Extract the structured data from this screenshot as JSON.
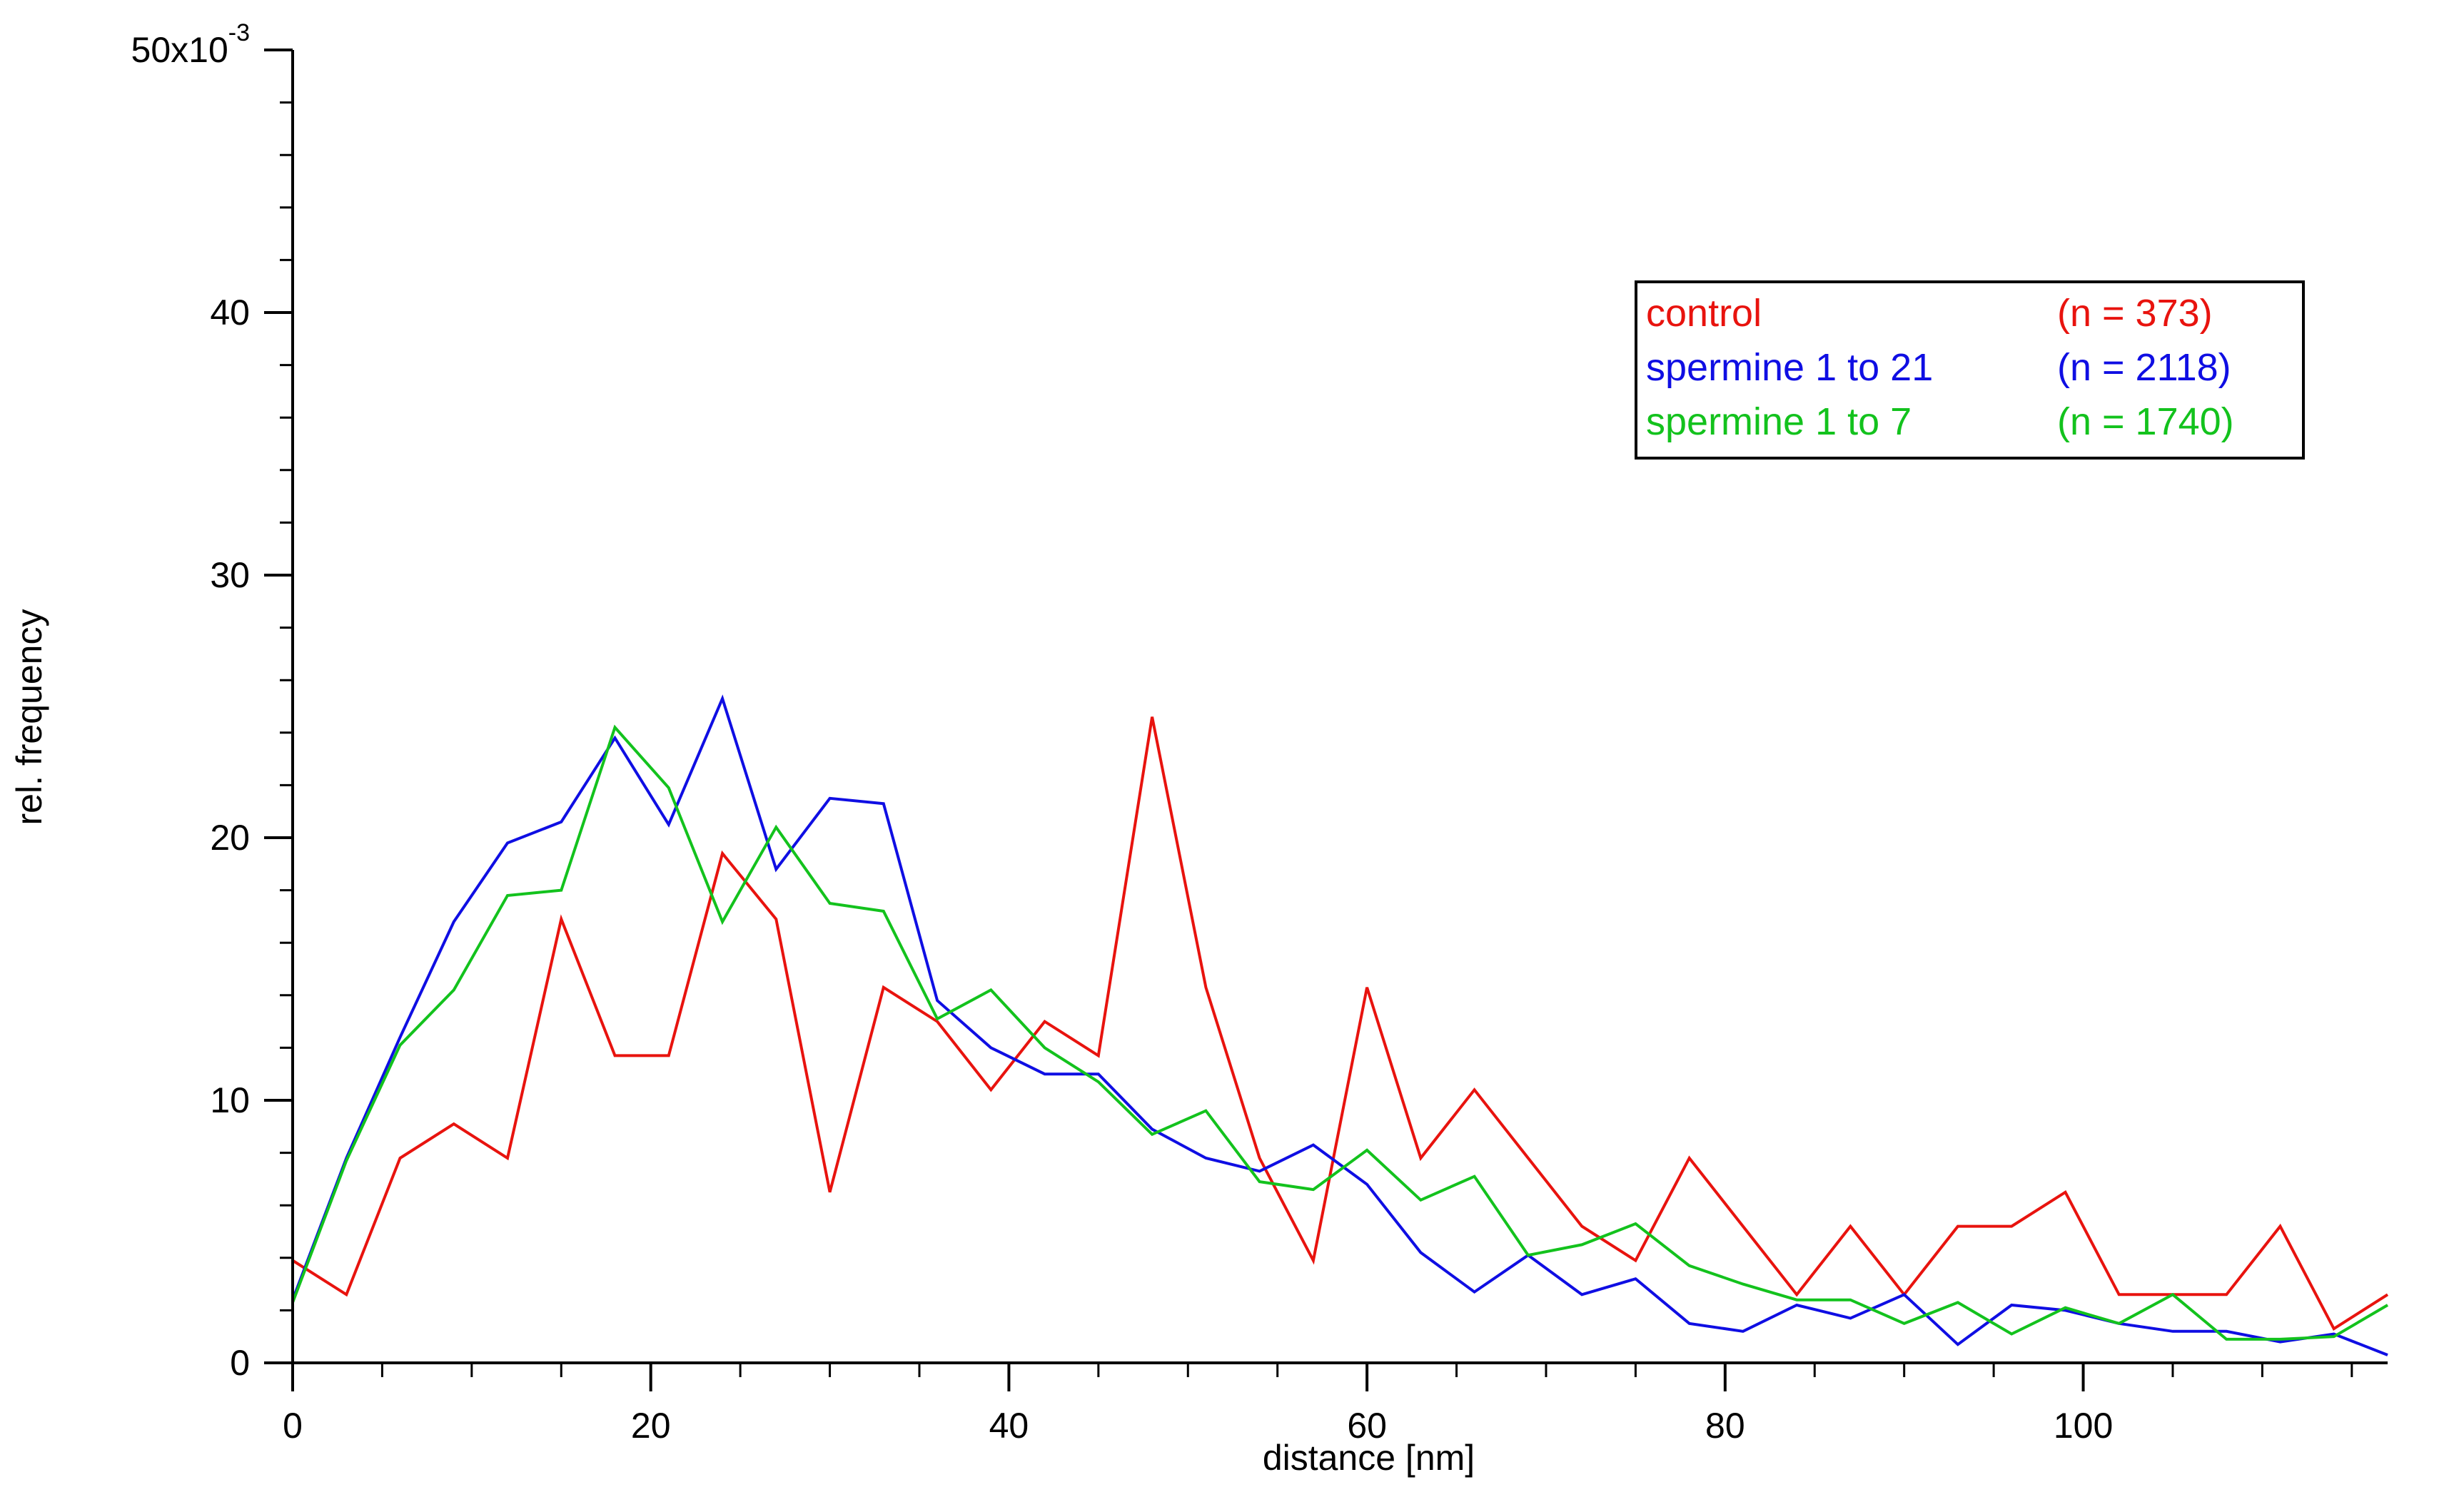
{
  "chart_data": {
    "type": "line",
    "xlabel": "distance [nm]",
    "ylabel": "rel. frequency",
    "xlim": [
      0,
      117
    ],
    "ylim": [
      0,
      0.05
    ],
    "x_ticks": [
      0,
      20,
      40,
      60,
      80,
      100
    ],
    "x_tick_labels": [
      "0",
      "20",
      "40",
      "60",
      "80",
      "100"
    ],
    "y_ticks": [
      0,
      0.01,
      0.02,
      0.03,
      0.04,
      0.05
    ],
    "y_tick_labels": [
      "0",
      "10",
      "20",
      "30",
      "40",
      "50x10"
    ],
    "y_top_exponent": "-3",
    "grid": false,
    "legend_position": "top-right",
    "x": [
      0,
      3,
      6,
      9,
      12,
      15,
      18,
      21,
      24,
      27,
      30,
      33,
      36,
      39,
      42,
      45,
      48,
      51,
      54,
      57,
      60,
      63,
      66,
      69,
      72,
      75,
      78,
      81,
      84,
      87,
      90,
      93,
      96,
      99,
      102,
      105,
      108,
      111,
      114,
      117
    ],
    "series": [
      {
        "name": "control",
        "n_label": "(n = 373)",
        "color": "#e8130e",
        "values": [
          0.0039,
          0.0026,
          0.0078,
          0.0091,
          0.0078,
          0.0169,
          0.0117,
          0.0117,
          0.0194,
          0.0169,
          0.0065,
          0.0143,
          0.013,
          0.0104,
          0.013,
          0.0117,
          0.0246,
          0.0143,
          0.0078,
          0.0039,
          0.0143,
          0.0078,
          0.0104,
          0.0078,
          0.0052,
          0.0039,
          0.0078,
          0.0052,
          0.0026,
          0.0052,
          0.0026,
          0.0052,
          0.0052,
          0.0065,
          0.0026,
          0.0026,
          0.0026,
          0.0052,
          0.0013,
          0.0026
        ]
      },
      {
        "name": "spermine 1 to 21",
        "n_label": "(n = 2118)",
        "color": "#0f0ee3",
        "values": [
          0.0024,
          0.0078,
          0.0124,
          0.0168,
          0.0198,
          0.0206,
          0.0238,
          0.0205,
          0.0253,
          0.0188,
          0.0215,
          0.0213,
          0.0138,
          0.012,
          0.011,
          0.011,
          0.0089,
          0.0078,
          0.0073,
          0.0083,
          0.0068,
          0.0042,
          0.0027,
          0.0041,
          0.0026,
          0.0032,
          0.0015,
          0.0012,
          0.0022,
          0.0017,
          0.0026,
          0.0007,
          0.0022,
          0.002,
          0.0015,
          0.0012,
          0.0012,
          0.0008,
          0.0011,
          0.0003
        ]
      },
      {
        "name": "spermine 1 to 7",
        "n_label": "(n = 1740)",
        "color": "#13c21d",
        "values": [
          0.0023,
          0.0077,
          0.0121,
          0.0142,
          0.0178,
          0.018,
          0.0242,
          0.0219,
          0.0168,
          0.0204,
          0.0175,
          0.0172,
          0.0131,
          0.0142,
          0.012,
          0.0107,
          0.0087,
          0.0096,
          0.0069,
          0.0066,
          0.0081,
          0.0062,
          0.0071,
          0.0041,
          0.0045,
          0.0053,
          0.0037,
          0.003,
          0.0024,
          0.0024,
          0.0015,
          0.0023,
          0.0011,
          0.0021,
          0.0015,
          0.0026,
          0.0009,
          0.0009,
          0.001,
          0.0022
        ]
      }
    ]
  }
}
